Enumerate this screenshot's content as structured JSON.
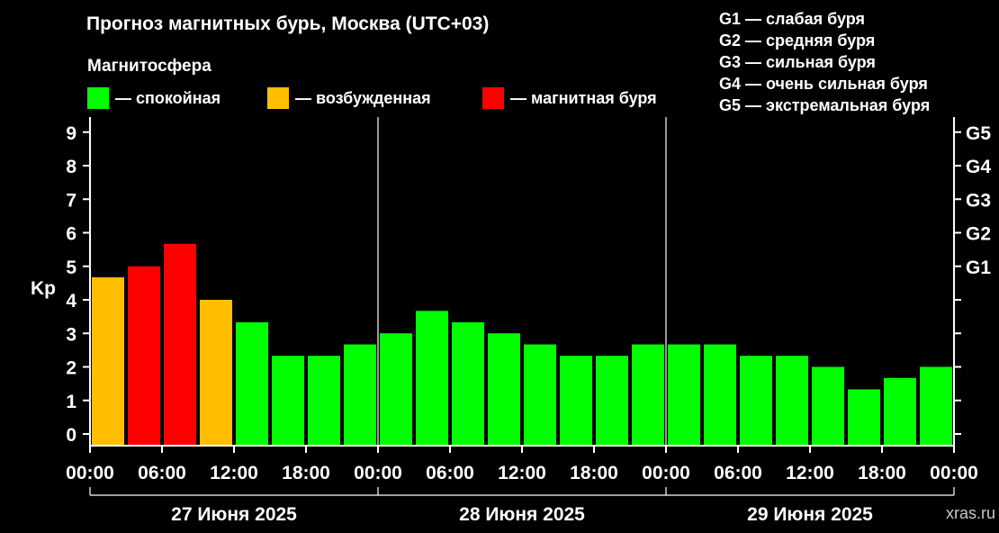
{
  "header": {
    "title": "Прогноз магнитных бурь, Москва (UTC+03)",
    "subtitle": "Магнитосфера",
    "legend": [
      {
        "label": "— спокойная",
        "color": "#00ff00"
      },
      {
        "label": "— возбужденная",
        "color": "#ffbf00"
      },
      {
        "label": "— магнитная буря",
        "color": "#ff0000"
      }
    ],
    "storm_levels": [
      "G1 — слабая буря",
      "G2 — средняя буря",
      "G3 — сильная буря",
      "G4 — очень сильная буря",
      "G5 — экстремальная буря"
    ]
  },
  "watermark": "xras.ru",
  "chart_data": {
    "type": "bar",
    "ylabel": "Kp",
    "ylim": [
      0,
      9
    ],
    "yticks": [
      "0",
      "1",
      "2",
      "3",
      "4",
      "5",
      "6",
      "7",
      "8",
      "9"
    ],
    "right_axis_labels": [
      {
        "label": "G1",
        "kp": 5
      },
      {
        "label": "G2",
        "kp": 6
      },
      {
        "label": "G3",
        "kp": 7
      },
      {
        "label": "G4",
        "kp": 8
      },
      {
        "label": "G5",
        "kp": 9
      }
    ],
    "xtick_labels": [
      "00:00",
      "06:00",
      "12:00",
      "18:00",
      "00:00",
      "06:00",
      "12:00",
      "18:00",
      "00:00",
      "06:00",
      "12:00",
      "18:00",
      "00:00"
    ],
    "days": [
      "27 Июня 2025",
      "28 Июня 2025",
      "29 Июня 2025"
    ],
    "values": [
      4.67,
      5.0,
      5.67,
      4.0,
      3.33,
      2.33,
      2.33,
      2.67,
      3.0,
      3.67,
      3.33,
      3.0,
      2.67,
      2.33,
      2.33,
      2.67,
      2.67,
      2.67,
      2.33,
      2.33,
      2.0,
      1.33,
      1.67,
      2.0
    ],
    "status": [
      "excited",
      "storm",
      "storm",
      "excited",
      "quiet",
      "quiet",
      "quiet",
      "quiet",
      "quiet",
      "quiet",
      "quiet",
      "quiet",
      "quiet",
      "quiet",
      "quiet",
      "quiet",
      "quiet",
      "quiet",
      "quiet",
      "quiet",
      "quiet",
      "quiet",
      "quiet",
      "quiet"
    ],
    "status_colors": {
      "quiet": "#00ff00",
      "excited": "#ffbf00",
      "storm": "#ff0000"
    }
  }
}
